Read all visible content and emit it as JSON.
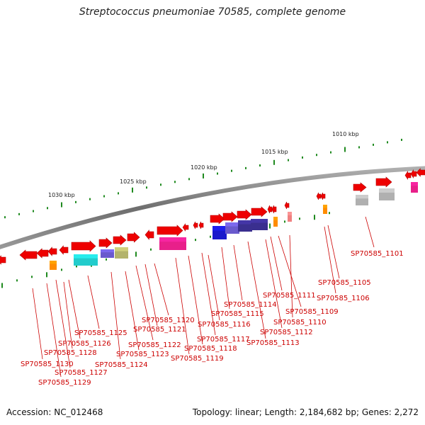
{
  "title": "Streptococcus pneumoniae 70585, complete genome",
  "footer": {
    "accession": "Accession: NC_012468",
    "stats": "Topology: linear; Length: 2,184,682 bp; Genes: 2,272"
  },
  "scale": {
    "ticks": [
      "1030 kbp",
      "1025 kbp",
      "1020 kbp",
      "1015 kbp",
      "1010 kbp"
    ]
  },
  "loci": [
    "SP70585_1101",
    "SP70585_1105",
    "SP70585_1106",
    "SP70585_1111",
    "SP70585_1109",
    "SP70585_1110",
    "SP70585_1112",
    "SP70585_1113",
    "SP70585_1114",
    "SP70585_1115",
    "SP70585_1116",
    "SP70585_1117",
    "SP70585_1118",
    "SP70585_1119",
    "SP70585_1120",
    "SP70585_1121",
    "SP70585_1122",
    "SP70585_1123",
    "SP70585_1124",
    "SP70585_1125",
    "SP70585_1126",
    "SP70585_1128",
    "SP70585_1130",
    "SP70585_1127",
    "SP70585_1129"
  ],
  "colors": {
    "gene_red": "#ee0000",
    "backbone": "#888888",
    "tick_green": "#1f8a1f",
    "label_red": "#cc0000",
    "orange": "#ff8c00",
    "cyan": "#22cccc",
    "purple": "#6a5acd",
    "indigo": "#3a2f8f",
    "blue": "#1a1acc",
    "olive": "#b3b36b",
    "magenta": "#e8208a",
    "gray": "#b0b0b0",
    "pink": "#f08080"
  }
}
